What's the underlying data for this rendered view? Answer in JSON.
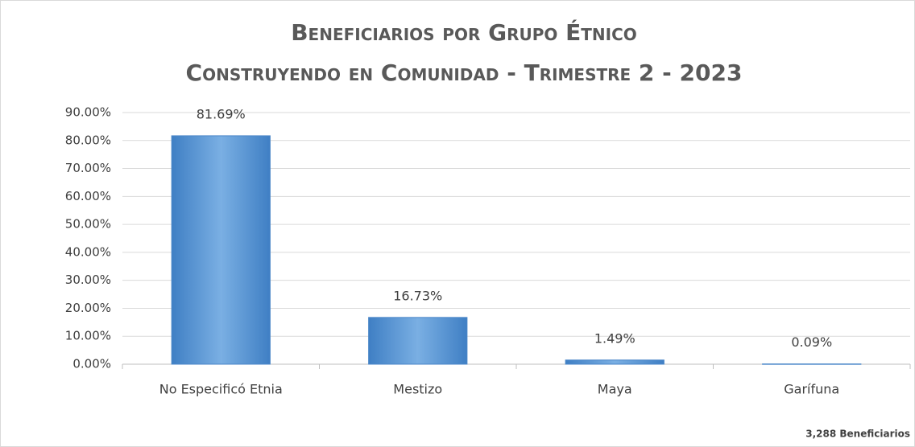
{
  "chart_data": {
    "type": "bar",
    "title": "Beneficiarios por Grupo Étnico",
    "subtitle": "Construyendo en Comunidad - Trimestre 2 - 2023",
    "categories": [
      "No Especificó Etnia",
      "Mestizo",
      "Maya",
      "Garífuna"
    ],
    "values": [
      81.69,
      16.73,
      1.49,
      0.09
    ],
    "value_labels": [
      "81.69%",
      "16.73%",
      "1.49%",
      "0.09%"
    ],
    "color": "#5b9bd5",
    "ylim": [
      0,
      90
    ],
    "yticks": [
      {
        "value": 0,
        "label": "0.00%"
      },
      {
        "value": 10,
        "label": "10.00%"
      },
      {
        "value": 20,
        "label": "20.00%"
      },
      {
        "value": 30,
        "label": "30.00%"
      },
      {
        "value": 40,
        "label": "40.00%"
      },
      {
        "value": 50,
        "label": "50.00%"
      },
      {
        "value": 60,
        "label": "60.00%"
      },
      {
        "value": 70,
        "label": "70.00%"
      },
      {
        "value": 80,
        "label": "80.00%"
      },
      {
        "value": 90,
        "label": "90.00%"
      }
    ],
    "grid": true,
    "annotation": "3,288 Beneficiarios"
  }
}
